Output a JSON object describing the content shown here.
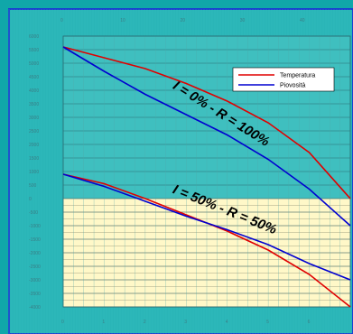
{
  "chart_data": {
    "type": "line",
    "title": "",
    "xlabel_top": "",
    "xlabel_bottom": "",
    "ylabel": "",
    "x_top_ticks": [
      "0",
      "10",
      "20",
      "30",
      "40"
    ],
    "x_bottom_ticks": [
      "0",
      "1",
      "2",
      "3",
      "4",
      "5",
      "6"
    ],
    "xlim": [
      0,
      7
    ],
    "ylim": [
      -4000,
      6000
    ],
    "y_ticks": [
      "6000",
      "5500",
      "5000",
      "4500",
      "4000",
      "3500",
      "3000",
      "2500",
      "2000",
      "1500",
      "1000",
      "500",
      "0",
      "-500",
      "-1000",
      "-1500",
      "-2000",
      "-2500",
      "-3000",
      "-3500",
      "-4000"
    ],
    "grid": true,
    "legend_position": "top-right",
    "shaded_region": {
      "y_from": -4000,
      "y_to": 0,
      "color": "#fff8c8"
    },
    "series": [
      {
        "name": "Temperatura",
        "color": "#e00000",
        "group": "upper",
        "x": [
          0,
          1,
          2,
          3,
          4,
          5,
          6,
          7
        ],
        "values": [
          5600,
          5200,
          4800,
          4250,
          3600,
          2800,
          1700,
          0
        ]
      },
      {
        "name": "Piovosità",
        "color": "#0000d0",
        "group": "upper",
        "x": [
          0,
          1,
          2,
          3,
          4,
          5,
          6,
          7
        ],
        "values": [
          5600,
          4700,
          3850,
          3100,
          2350,
          1450,
          350,
          -1000
        ]
      },
      {
        "name": "Temperatura",
        "color": "#e00000",
        "group": "lower",
        "x": [
          0,
          1,
          2,
          3,
          4,
          5,
          6,
          7
        ],
        "values": [
          900,
          550,
          0,
          -600,
          -1200,
          -1900,
          -2800,
          -4000
        ]
      },
      {
        "name": "Piovosità",
        "color": "#0000d0",
        "group": "lower",
        "x": [
          0,
          1,
          2,
          3,
          4,
          5,
          6,
          7
        ],
        "values": [
          900,
          450,
          -100,
          -650,
          -1150,
          -1700,
          -2400,
          -3000
        ]
      }
    ],
    "annotations": [
      {
        "text": "I = 0% - R = 100%",
        "x": 3.8,
        "y": 3000,
        "angle": 32
      },
      {
        "text": "I = 50% - R = 50%",
        "x": 3.9,
        "y": -550,
        "angle": 22
      }
    ],
    "legend": [
      "Temperatura",
      "Piovosità"
    ]
  }
}
